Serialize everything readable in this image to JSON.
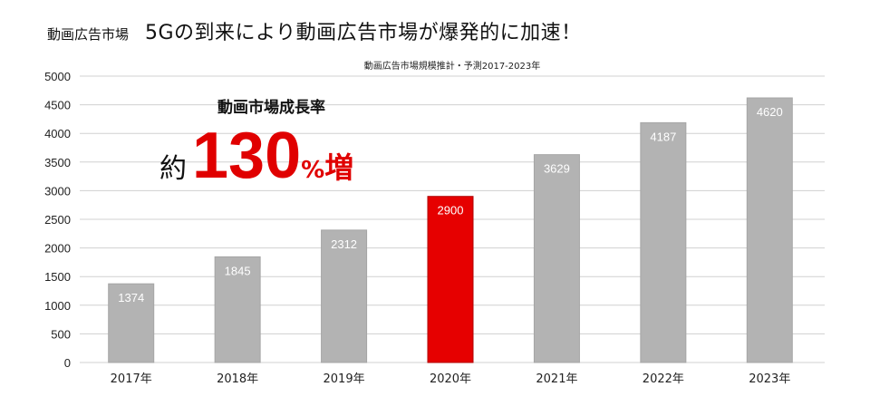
{
  "header": {
    "small_title": "動画広告市場",
    "main_title": "5Gの到来により動画広告市場が爆発的に加速！"
  },
  "annotation": {
    "label": "動画市場成長率",
    "prefix": "約",
    "value": "130",
    "unit": "%",
    "suffix": "増"
  },
  "chart_data": {
    "type": "bar",
    "title": "動画広告市場規模推計・予測2017-2023年",
    "categories": [
      "2017年",
      "2018年",
      "2019年",
      "2020年",
      "2021年",
      "2022年",
      "2023年"
    ],
    "values": [
      1374,
      1845,
      2312,
      2900,
      3629,
      4187,
      4620
    ],
    "value_labels": [
      "1374",
      "1845",
      "2312",
      "2900",
      "3629",
      "4187",
      "4620"
    ],
    "ylim": [
      0,
      5000
    ],
    "yticks": [
      0,
      500,
      1000,
      1500,
      2000,
      2500,
      3000,
      3500,
      4000,
      4500,
      5000
    ],
    "grid": true,
    "colors": {
      "default": "#b3b3b3",
      "highlight": "#e60000",
      "highlight_index": 3
    }
  }
}
